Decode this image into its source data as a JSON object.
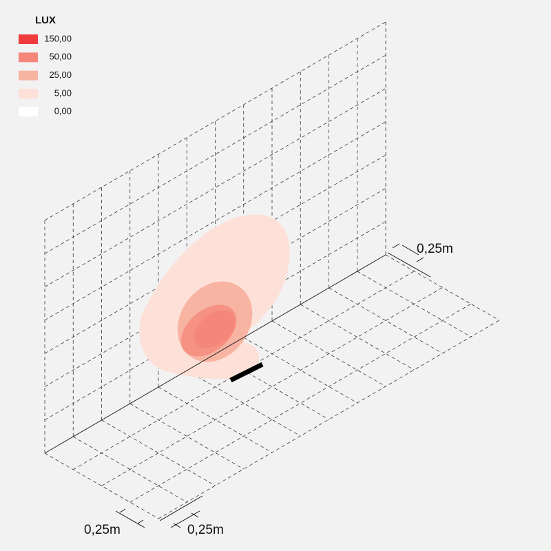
{
  "legend": {
    "title": "LUX",
    "items": [
      {
        "label": "150,00",
        "color": "#f03a3e"
      },
      {
        "label": "50,00",
        "color": "#f5877a"
      },
      {
        "label": "25,00",
        "color": "#f8b4a2"
      },
      {
        "label": "5,00",
        "color": "#fde0d7"
      },
      {
        "label": "0,00",
        "color": "#ffffff"
      }
    ]
  },
  "dimensions": [
    "0,25m",
    "0,25m",
    "0,25m"
  ]
}
